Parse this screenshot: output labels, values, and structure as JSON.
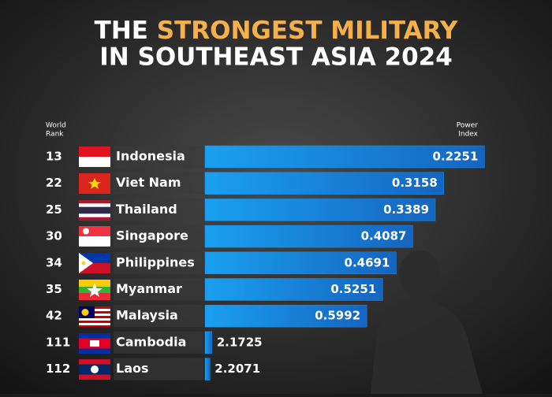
{
  "chart_data": {
    "type": "bar",
    "orientation": "horizontal",
    "title": {
      "line1_plain": "THE",
      "line1_highlight": "STRONGEST MILITARY",
      "line2": "IN SOUTHEAST ASIA 2024"
    },
    "rank_header": [
      "World",
      "Rank"
    ],
    "value_header": [
      "Power",
      "Index"
    ],
    "categories": [
      "Indonesia",
      "Viet Nam",
      "Thailand",
      "Singapore",
      "Philippines",
      "Myanmar",
      "Malaysia",
      "Cambodia",
      "Laos"
    ],
    "ranks": [
      "13",
      "22",
      "25",
      "30",
      "34",
      "35",
      "42",
      "111",
      "112"
    ],
    "values": [
      0.2251,
      0.3158,
      0.3389,
      0.4087,
      0.4691,
      0.5251,
      0.5992,
      2.1725,
      2.2071
    ],
    "color": "#1a8ee6",
    "highlight_color": "#f6b04a",
    "xlim": [
      2.3,
      0.21
    ],
    "log_scale": true
  }
}
